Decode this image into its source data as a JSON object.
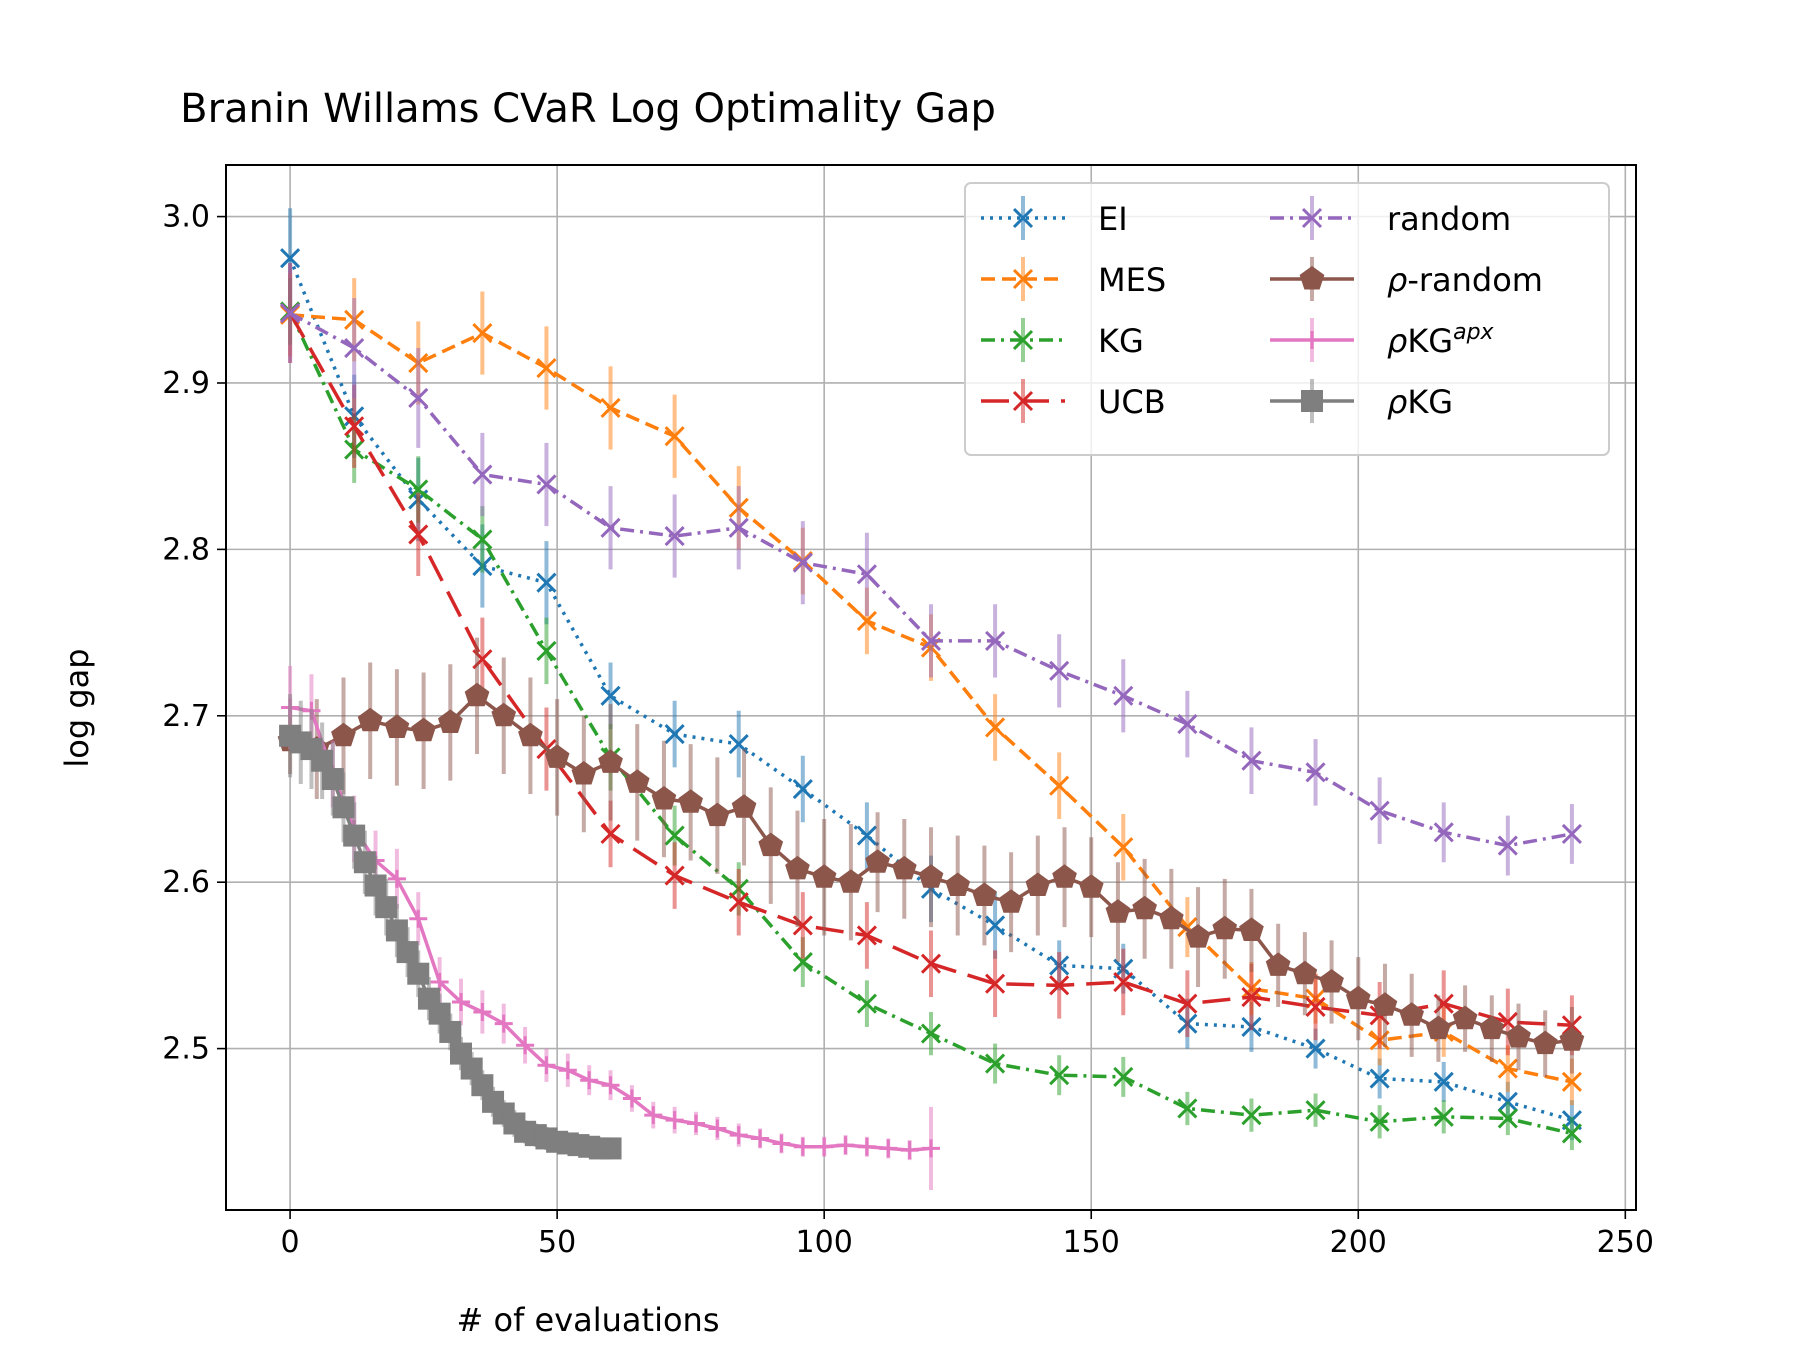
{
  "chart_data": {
    "type": "line",
    "title": "Branin Willams CVaR Log Optimality Gap",
    "xlabel": "# of evaluations",
    "ylabel": "log gap",
    "xlim": [
      -12,
      252
    ],
    "ylim": [
      2.403,
      3.031
    ],
    "xticks": [
      0,
      50,
      100,
      150,
      200,
      250
    ],
    "xtick_labels": [
      "0",
      "50",
      "100",
      "150",
      "200",
      "250"
    ],
    "yticks": [
      2.5,
      2.6,
      2.7,
      2.8,
      2.9,
      3.0
    ],
    "ytick_labels": [
      "2.5",
      "2.6",
      "2.7",
      "2.8",
      "2.9",
      "3.0"
    ],
    "grid": true,
    "legend_position": "top-right",
    "series": [
      {
        "name": "EI",
        "color": "#1f77b4",
        "linestyle": "dotted",
        "marker": "x",
        "x": [
          0,
          12,
          24,
          36,
          48,
          60,
          72,
          84,
          96,
          108,
          120,
          132,
          144,
          156,
          168,
          180,
          192,
          204,
          216,
          228,
          240
        ],
        "y": [
          2.975,
          2.88,
          2.83,
          2.79,
          2.78,
          2.712,
          2.689,
          2.683,
          2.656,
          2.628,
          2.596,
          2.574,
          2.55,
          2.548,
          2.515,
          2.513,
          2.5,
          2.482,
          2.48,
          2.468,
          2.457
        ],
        "err": [
          0.03,
          0.025,
          0.025,
          0.025,
          0.025,
          0.02,
          0.02,
          0.02,
          0.02,
          0.02,
          0.02,
          0.02,
          0.015,
          0.015,
          0.015,
          0.015,
          0.012,
          0.012,
          0.012,
          0.012,
          0.012
        ]
      },
      {
        "name": "MES",
        "color": "#ff7f0e",
        "linestyle": "dashed",
        "marker": "x",
        "x": [
          0,
          12,
          24,
          36,
          48,
          60,
          72,
          84,
          96,
          108,
          120,
          132,
          144,
          156,
          168,
          180,
          192,
          204,
          216,
          228,
          240
        ],
        "y": [
          2.941,
          2.938,
          2.912,
          2.93,
          2.909,
          2.885,
          2.868,
          2.825,
          2.793,
          2.757,
          2.741,
          2.693,
          2.658,
          2.621,
          2.573,
          2.536,
          2.53,
          2.505,
          2.51,
          2.488,
          2.48
        ],
        "err": [
          0.025,
          0.025,
          0.025,
          0.025,
          0.025,
          0.025,
          0.025,
          0.025,
          0.02,
          0.02,
          0.02,
          0.02,
          0.02,
          0.02,
          0.018,
          0.016,
          0.015,
          0.015,
          0.015,
          0.014,
          0.014
        ]
      },
      {
        "name": "KG",
        "color": "#2ca02c",
        "linestyle": "dashdot",
        "marker": "x",
        "x": [
          0,
          12,
          24,
          36,
          48,
          60,
          72,
          84,
          96,
          108,
          120,
          132,
          144,
          156,
          168,
          180,
          192,
          204,
          216,
          228,
          240
        ],
        "y": [
          2.943,
          2.86,
          2.836,
          2.806,
          2.739,
          2.675,
          2.628,
          2.596,
          2.552,
          2.527,
          2.509,
          2.491,
          2.484,
          2.483,
          2.464,
          2.46,
          2.463,
          2.456,
          2.459,
          2.458,
          2.449
        ],
        "err": [
          0.02,
          0.02,
          0.02,
          0.02,
          0.02,
          0.02,
          0.018,
          0.016,
          0.015,
          0.014,
          0.013,
          0.012,
          0.012,
          0.012,
          0.01,
          0.01,
          0.01,
          0.01,
          0.01,
          0.01,
          0.01
        ]
      },
      {
        "name": "UCB",
        "color": "#d62728",
        "linestyle": "longdash",
        "marker": "x",
        "x": [
          0,
          12,
          24,
          36,
          48,
          60,
          72,
          84,
          96,
          108,
          120,
          132,
          144,
          156,
          168,
          180,
          192,
          204,
          216,
          228,
          240
        ],
        "y": [
          2.942,
          2.874,
          2.809,
          2.734,
          2.68,
          2.629,
          2.604,
          2.588,
          2.574,
          2.568,
          2.551,
          2.539,
          2.538,
          2.54,
          2.527,
          2.531,
          2.525,
          2.52,
          2.527,
          2.516,
          2.514
        ],
        "err": [
          0.03,
          0.025,
          0.025,
          0.025,
          0.025,
          0.02,
          0.02,
          0.02,
          0.02,
          0.02,
          0.02,
          0.02,
          0.02,
          0.02,
          0.02,
          0.02,
          0.02,
          0.02,
          0.02,
          0.02,
          0.018
        ]
      },
      {
        "name": "random",
        "color": "#9467bd",
        "linestyle": "dashdot",
        "marker": "x",
        "x": [
          0,
          12,
          24,
          36,
          48,
          60,
          72,
          84,
          96,
          108,
          120,
          132,
          144,
          156,
          168,
          180,
          192,
          204,
          216,
          228,
          240
        ],
        "y": [
          2.942,
          2.921,
          2.891,
          2.845,
          2.839,
          2.813,
          2.808,
          2.813,
          2.792,
          2.785,
          2.745,
          2.745,
          2.727,
          2.712,
          2.695,
          2.673,
          2.666,
          2.643,
          2.63,
          2.622,
          2.629
        ],
        "err": [
          0.03,
          0.03,
          0.03,
          0.025,
          0.025,
          0.025,
          0.025,
          0.025,
          0.025,
          0.025,
          0.022,
          0.022,
          0.022,
          0.022,
          0.02,
          0.02,
          0.02,
          0.02,
          0.018,
          0.018,
          0.018
        ]
      },
      {
        "name": "ρ-random",
        "color": "#8c564b",
        "linestyle": "solid",
        "marker": "pentagon",
        "x": [
          0,
          5,
          10,
          15,
          20,
          25,
          30,
          35,
          40,
          45,
          50,
          55,
          60,
          65,
          70,
          75,
          80,
          85,
          90,
          95,
          100,
          105,
          110,
          115,
          120,
          125,
          130,
          135,
          140,
          145,
          150,
          155,
          160,
          165,
          170,
          175,
          180,
          185,
          190,
          195,
          200,
          205,
          210,
          215,
          220,
          225,
          230,
          235,
          240
        ],
        "y": [
          2.685,
          2.68,
          2.688,
          2.697,
          2.693,
          2.691,
          2.696,
          2.712,
          2.7,
          2.688,
          2.675,
          2.665,
          2.672,
          2.66,
          2.65,
          2.648,
          2.64,
          2.645,
          2.622,
          2.608,
          2.603,
          2.6,
          2.612,
          2.608,
          2.603,
          2.598,
          2.592,
          2.588,
          2.598,
          2.603,
          2.597,
          2.582,
          2.584,
          2.578,
          2.567,
          2.572,
          2.571,
          2.55,
          2.545,
          2.54,
          2.53,
          2.526,
          2.52,
          2.512,
          2.518,
          2.512,
          2.507,
          2.503,
          2.505
        ],
        "err": [
          0.02,
          0.03,
          0.035,
          0.035,
          0.035,
          0.035,
          0.035,
          0.035,
          0.035,
          0.035,
          0.035,
          0.035,
          0.035,
          0.035,
          0.035,
          0.035,
          0.035,
          0.035,
          0.035,
          0.035,
          0.035,
          0.035,
          0.03,
          0.03,
          0.03,
          0.03,
          0.03,
          0.03,
          0.03,
          0.03,
          0.03,
          0.03,
          0.03,
          0.03,
          0.03,
          0.03,
          0.025,
          0.025,
          0.025,
          0.025,
          0.025,
          0.025,
          0.025,
          0.02,
          0.02,
          0.02,
          0.02,
          0.02,
          0.02
        ]
      },
      {
        "name": "ρKG",
        "name_sup": "apx",
        "color": "#e377c2",
        "linestyle": "solid",
        "marker": "plus",
        "x": [
          0,
          4,
          8,
          12,
          16,
          20,
          24,
          28,
          32,
          36,
          40,
          44,
          48,
          52,
          56,
          60,
          64,
          68,
          72,
          76,
          80,
          84,
          88,
          92,
          96,
          100,
          104,
          108,
          112,
          116,
          120
        ],
        "y": [
          2.705,
          2.703,
          2.665,
          2.632,
          2.613,
          2.602,
          2.578,
          2.54,
          2.528,
          2.522,
          2.515,
          2.502,
          2.49,
          2.487,
          2.481,
          2.478,
          2.47,
          2.46,
          2.457,
          2.455,
          2.452,
          2.448,
          2.446,
          2.443,
          2.441,
          2.441,
          2.442,
          2.441,
          2.44,
          2.439,
          2.44
        ],
        "err": [
          0.025,
          0.022,
          0.02,
          0.02,
          0.018,
          0.018,
          0.016,
          0.015,
          0.014,
          0.013,
          0.012,
          0.011,
          0.01,
          0.01,
          0.009,
          0.009,
          0.008,
          0.008,
          0.008,
          0.007,
          0.007,
          0.007,
          0.006,
          0.006,
          0.006,
          0.006,
          0.006,
          0.006,
          0.006,
          0.006,
          0.025
        ]
      },
      {
        "name": "ρKG",
        "color": "#7f7f7f",
        "linestyle": "solid",
        "marker": "square",
        "x": [
          0,
          2,
          4,
          6,
          8,
          10,
          12,
          14,
          16,
          18,
          20,
          22,
          24,
          26,
          28,
          30,
          32,
          34,
          36,
          38,
          40,
          42,
          44,
          46,
          48,
          50,
          52,
          54,
          56,
          58,
          60
        ],
        "y": [
          2.688,
          2.684,
          2.68,
          2.673,
          2.662,
          2.645,
          2.628,
          2.612,
          2.598,
          2.585,
          2.571,
          2.558,
          2.545,
          2.53,
          2.521,
          2.51,
          2.497,
          2.488,
          2.478,
          2.468,
          2.461,
          2.455,
          2.45,
          2.448,
          2.446,
          2.444,
          2.443,
          2.442,
          2.441,
          2.44,
          2.44
        ],
        "err": [
          0.025,
          0.025,
          0.024,
          0.023,
          0.022,
          0.021,
          0.02,
          0.019,
          0.018,
          0.017,
          0.016,
          0.015,
          0.014,
          0.013,
          0.012,
          0.011,
          0.01,
          0.01,
          0.009,
          0.009,
          0.008,
          0.008,
          0.007,
          0.007,
          0.007,
          0.006,
          0.006,
          0.006,
          0.006,
          0.006,
          0.006
        ]
      }
    ]
  }
}
